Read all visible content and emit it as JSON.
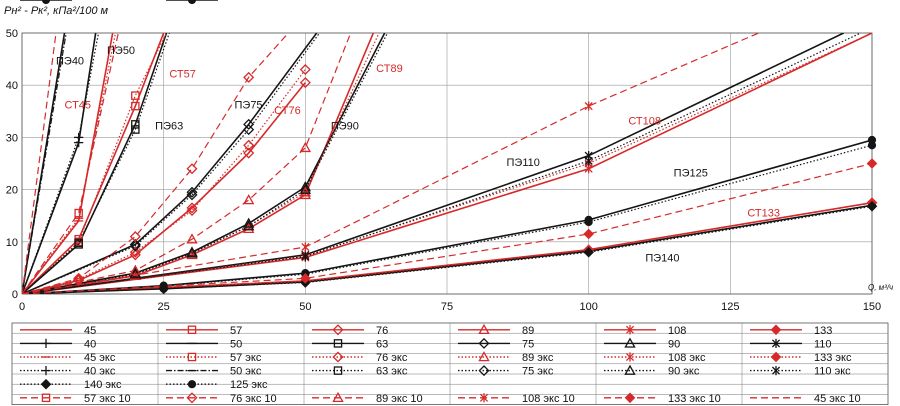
{
  "chart_data": {
    "type": "line",
    "ylabel": "Pн² - Pк², кПа²/100 м",
    "xlabel": "Q, м³/ч",
    "xlim": [
      0,
      150
    ],
    "ylim": [
      0,
      50
    ],
    "x_ticks": [
      "0",
      "25",
      "50",
      "75",
      "100",
      "125",
      "150"
    ],
    "y_ticks": [
      "0",
      "10",
      "20",
      "30",
      "40",
      "50"
    ],
    "grid": true,
    "colors": {
      "red": "#d62a2a",
      "black": "#151515"
    },
    "annotations": [
      {
        "text": "ПЭ40",
        "color": "black",
        "x": 6,
        "y": 44
      },
      {
        "text": "ПЭ50",
        "color": "black",
        "x": 15,
        "y": 46
      },
      {
        "text": "СТ57",
        "color": "red",
        "x": 26,
        "y": 41.5
      },
      {
        "text": "СТ45",
        "color": "red",
        "x": 7.5,
        "y": 35.5
      },
      {
        "text": "СТ76",
        "color": "red",
        "x": 44.5,
        "y": 34.5
      },
      {
        "text": "ПЭ75",
        "color": "black",
        "x": 37.5,
        "y": 35.5
      },
      {
        "text": "ПЭ63",
        "color": "black",
        "x": 23.5,
        "y": 31.5
      },
      {
        "text": "СТ89",
        "color": "red",
        "x": 62.5,
        "y": 42.5
      },
      {
        "text": "ПЭ90",
        "color": "black",
        "x": 54.5,
        "y": 31.5
      },
      {
        "text": "СТ108",
        "color": "red",
        "x": 107,
        "y": 32.5
      },
      {
        "text": "ПЭ110",
        "color": "black",
        "x": 85.5,
        "y": 24.5
      },
      {
        "text": "ПЭ125",
        "color": "black",
        "x": 115,
        "y": 22.5
      },
      {
        "text": "СТ133",
        "color": "red",
        "x": 128,
        "y": 14.8
      },
      {
        "text": "ПЭ140",
        "color": "black",
        "x": 110,
        "y": 6.2
      }
    ],
    "series": [
      {
        "name": "45",
        "group": "solid",
        "color": "red",
        "style": "solid",
        "marker": "dash",
        "x": [
          0,
          10,
          16
        ],
        "y": [
          0,
          14,
          50
        ]
      },
      {
        "name": "57",
        "group": "solid",
        "color": "red",
        "style": "solid",
        "marker": "square",
        "x": [
          0,
          10,
          20,
          25
        ],
        "y": [
          0,
          10.5,
          36,
          50
        ]
      },
      {
        "name": "76",
        "group": "solid",
        "color": "red",
        "style": "solid",
        "marker": "diamond",
        "x": [
          0,
          10,
          20,
          30,
          40,
          50
        ],
        "y": [
          0,
          2.6,
          7.5,
          16.5,
          27,
          40.5
        ]
      },
      {
        "name": "89",
        "group": "solid",
        "color": "red",
        "style": "solid",
        "marker": "triangle",
        "x": [
          0,
          20,
          30,
          40,
          50,
          62
        ],
        "y": [
          0,
          3.5,
          7.5,
          12.5,
          19,
          50
        ]
      },
      {
        "name": "108",
        "group": "solid",
        "color": "red",
        "style": "solid",
        "marker": "asterisk",
        "x": [
          0,
          50,
          100,
          150
        ],
        "y": [
          0,
          7,
          24,
          50
        ]
      },
      {
        "name": "133",
        "group": "solid",
        "color": "red",
        "style": "solid",
        "marker": "diamond-filled",
        "x": [
          0,
          50,
          100,
          150
        ],
        "y": [
          0,
          2.5,
          8.5,
          17.5
        ]
      },
      {
        "name": "40",
        "group": "solid",
        "color": "black",
        "style": "solid",
        "marker": "plus",
        "x": [
          0,
          10,
          13
        ],
        "y": [
          0,
          29,
          50
        ]
      },
      {
        "name": "50",
        "group": "solid",
        "color": "black",
        "style": "solid",
        "marker": "dash",
        "x": [
          0,
          7.5
        ],
        "y": [
          0,
          50
        ]
      },
      {
        "name": "63",
        "group": "solid",
        "color": "black",
        "style": "solid",
        "marker": "square",
        "x": [
          0,
          10,
          20,
          25.5
        ],
        "y": [
          0,
          9.5,
          32.5,
          50
        ]
      },
      {
        "name": "75",
        "group": "solid",
        "color": "black",
        "style": "solid",
        "marker": "diamond",
        "x": [
          0,
          20,
          30,
          40,
          52
        ],
        "y": [
          0,
          9.5,
          19.5,
          32.5,
          50
        ]
      },
      {
        "name": "90",
        "group": "solid",
        "color": "black",
        "style": "solid",
        "marker": "triangle",
        "x": [
          0,
          20,
          30,
          40,
          50,
          64
        ],
        "y": [
          0,
          4,
          8,
          13.5,
          20.5,
          50
        ]
      },
      {
        "name": "110",
        "group": "solid",
        "color": "black",
        "style": "solid",
        "marker": "asterisk",
        "x": [
          0,
          50,
          100,
          145
        ],
        "y": [
          0,
          7.5,
          26.5,
          50
        ]
      },
      {
        "name": "125",
        "group": "solid",
        "color": "black",
        "style": "solid",
        "marker": "circle",
        "x": [
          0,
          25,
          50,
          100,
          150
        ],
        "y": [
          0,
          1.6,
          4,
          14.2,
          29.5
        ]
      },
      {
        "name": "140",
        "group": "solid",
        "color": "black",
        "style": "solid",
        "marker": "circle",
        "x": [
          0,
          25,
          50,
          100,
          150
        ],
        "y": [
          0,
          1,
          2.3,
          8.2,
          17
        ]
      },
      {
        "name": "45 экс",
        "group": "exp",
        "color": "red",
        "style": "dotted",
        "marker": "dash",
        "x": [
          0,
          10,
          16.5
        ],
        "y": [
          0,
          14.5,
          50
        ]
      },
      {
        "name": "57 экс",
        "group": "exp",
        "color": "red",
        "style": "dotted",
        "marker": "square",
        "x": [
          0,
          10,
          20,
          25.5
        ],
        "y": [
          0,
          10,
          38,
          50
        ]
      },
      {
        "name": "76 экс",
        "group": "exp",
        "color": "red",
        "style": "dotted",
        "marker": "diamond",
        "x": [
          0,
          10,
          20,
          30,
          40,
          50
        ],
        "y": [
          0,
          2.8,
          8,
          16,
          28.5,
          43
        ]
      },
      {
        "name": "89 экс",
        "group": "exp",
        "color": "red",
        "style": "dotted",
        "marker": "triangle",
        "x": [
          0,
          20,
          30,
          40,
          50,
          63
        ],
        "y": [
          0,
          3.6,
          7.8,
          13,
          19.5,
          50
        ]
      },
      {
        "name": "108 экс",
        "group": "exp",
        "color": "red",
        "style": "dotted",
        "marker": "asterisk",
        "x": [
          0,
          50,
          100,
          150
        ],
        "y": [
          0,
          7.3,
          25,
          50
        ]
      },
      {
        "name": "133 экс",
        "group": "exp",
        "color": "red",
        "style": "dotted",
        "marker": "diamond-filled",
        "x": [
          0,
          50,
          100,
          150
        ],
        "y": [
          0,
          2.4,
          8.4,
          17.5
        ]
      },
      {
        "name": "40 экс",
        "group": "exp",
        "color": "black",
        "style": "dotted",
        "marker": "plus",
        "x": [
          0,
          10,
          13.5
        ],
        "y": [
          0,
          30,
          50
        ]
      },
      {
        "name": "50 экс",
        "group": "exp",
        "color": "black",
        "style": "dashdot",
        "marker": "dash",
        "x": [
          0,
          7.8
        ],
        "y": [
          0,
          50
        ]
      },
      {
        "name": "63 экс",
        "group": "exp",
        "color": "black",
        "style": "dotted",
        "marker": "square",
        "x": [
          0,
          10,
          20,
          26
        ],
        "y": [
          0,
          9.8,
          31.5,
          50
        ]
      },
      {
        "name": "75 экс",
        "group": "exp",
        "color": "black",
        "style": "dotted",
        "marker": "diamond",
        "x": [
          0,
          20,
          30,
          40,
          52.5
        ],
        "y": [
          0,
          9.2,
          19,
          31.5,
          50
        ]
      },
      {
        "name": "90 экс",
        "group": "exp",
        "color": "black",
        "style": "dotted",
        "marker": "triangle",
        "x": [
          0,
          20,
          30,
          40,
          50,
          64.5
        ],
        "y": [
          0,
          3.8,
          7.8,
          13,
          20,
          50
        ]
      },
      {
        "name": "110 экс",
        "group": "exp",
        "color": "black",
        "style": "dotted",
        "marker": "asterisk",
        "x": [
          0,
          50,
          100,
          148
        ],
        "y": [
          0,
          7.2,
          25.5,
          50
        ]
      },
      {
        "name": "140 экс",
        "group": "exp",
        "color": "black",
        "style": "dotted",
        "marker": "diamond-filled",
        "x": [
          0,
          25,
          50,
          100,
          150
        ],
        "y": [
          0,
          1,
          2.2,
          8,
          16.8
        ]
      },
      {
        "name": "125 экс",
        "group": "exp",
        "color": "black",
        "style": "dotted",
        "marker": "circle",
        "x": [
          0,
          25,
          50,
          100,
          150
        ],
        "y": [
          0,
          1.5,
          3.8,
          13.8,
          28.5
        ]
      },
      {
        "name": "57 экс 10",
        "group": "exp10",
        "color": "red",
        "style": "dashed",
        "marker": "square",
        "x": [
          0,
          10,
          17
        ],
        "y": [
          0,
          15.5,
          50
        ]
      },
      {
        "name": "76 экс 10",
        "group": "exp10",
        "color": "red",
        "style": "dashed",
        "marker": "diamond",
        "x": [
          0,
          10,
          20,
          30,
          40,
          47
        ],
        "y": [
          0,
          3,
          11,
          24,
          41.5,
          50
        ]
      },
      {
        "name": "89 экс 10",
        "group": "exp10",
        "color": "red",
        "style": "dashed",
        "marker": "triangle",
        "x": [
          0,
          20,
          30,
          40,
          50,
          58
        ],
        "y": [
          0,
          4.5,
          10.5,
          18,
          28,
          50
        ]
      },
      {
        "name": "108 экс 10",
        "group": "exp10",
        "color": "red",
        "style": "dashed",
        "marker": "asterisk",
        "x": [
          0,
          50,
          100,
          130
        ],
        "y": [
          0,
          9,
          36,
          50
        ]
      },
      {
        "name": "133 экс 10",
        "group": "exp10",
        "color": "red",
        "style": "dashed",
        "marker": "diamond-filled",
        "x": [
          0,
          50,
          100,
          150
        ],
        "y": [
          0,
          3,
          11.5,
          25
        ]
      },
      {
        "name": "45 экс 10",
        "group": "exp10",
        "color": "red",
        "style": "dashed",
        "marker": "none",
        "x": [
          0,
          6
        ],
        "y": [
          0,
          50
        ]
      }
    ]
  }
}
